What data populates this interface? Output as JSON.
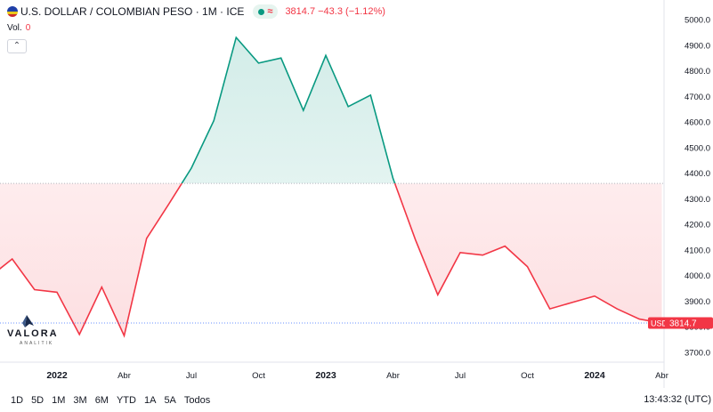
{
  "header": {
    "symbol_title": "U.S. DOLLAR / COLOMBIAN PESO · 1M · ICE",
    "status_symbol": "≈",
    "price_line": "3814.7 −43.3 (−1.12%)"
  },
  "volume": {
    "label": "Vol.",
    "value": "0"
  },
  "logo": {
    "name": "VALORA",
    "subtitle": "ANALITIK"
  },
  "price_badge": {
    "symbol": "USDCOP",
    "price": "3814.7"
  },
  "colors": {
    "up": "#089981",
    "down": "#f23645",
    "baseline": "#2962ff"
  },
  "range_buttons": [
    "1D",
    "5D",
    "1M",
    "3M",
    "6M",
    "YTD",
    "1A",
    "5A",
    "Todos"
  ],
  "clock": "13:43:32 (UTC)",
  "chart_data": {
    "type": "area",
    "style": "baseline",
    "baseline_value": 4360,
    "ylim": [
      3640,
      5040
    ],
    "y_ticks": [
      5000,
      4900,
      4800,
      4700,
      4600,
      4500,
      4400,
      4300,
      4200,
      4100,
      4000,
      3900,
      3800,
      3700
    ],
    "x_ticks": [
      {
        "label": "2022",
        "x": "2022-01"
      },
      {
        "label": "Abr",
        "x": "2022-04"
      },
      {
        "label": "Jul",
        "x": "2022-07"
      },
      {
        "label": "Oct",
        "x": "2022-10"
      },
      {
        "label": "2023",
        "x": "2023-01"
      },
      {
        "label": "Abr",
        "x": "2023-04"
      },
      {
        "label": "Jul",
        "x": "2023-07"
      },
      {
        "label": "Oct",
        "x": "2023-10"
      },
      {
        "label": "2024",
        "x": "2024-01"
      },
      {
        "label": "Abr",
        "x": "2024-04"
      }
    ],
    "x": [
      "2021-09",
      "2021-10",
      "2021-11",
      "2021-12",
      "2022-01",
      "2022-02",
      "2022-03",
      "2022-04",
      "2022-05",
      "2022-06",
      "2022-07",
      "2022-08",
      "2022-09",
      "2022-10",
      "2022-11",
      "2022-12",
      "2023-01",
      "2023-02",
      "2023-03",
      "2023-04",
      "2023-05",
      "2023-06",
      "2023-07",
      "2023-08",
      "2023-09",
      "2023-10",
      "2023-11",
      "2023-12",
      "2024-01",
      "2024-02",
      "2024-03",
      "2024-04"
    ],
    "values": [
      3870,
      3995,
      4065,
      3945,
      3935,
      3770,
      3955,
      3765,
      4145,
      4280,
      4420,
      4605,
      4930,
      4830,
      4850,
      4645,
      4860,
      4660,
      4705,
      4380,
      4140,
      3925,
      4090,
      4080,
      4115,
      4035,
      3870,
      3895,
      3920,
      3870,
      3830,
      3814.7
    ],
    "last_value": 3814.7,
    "grid": false
  }
}
